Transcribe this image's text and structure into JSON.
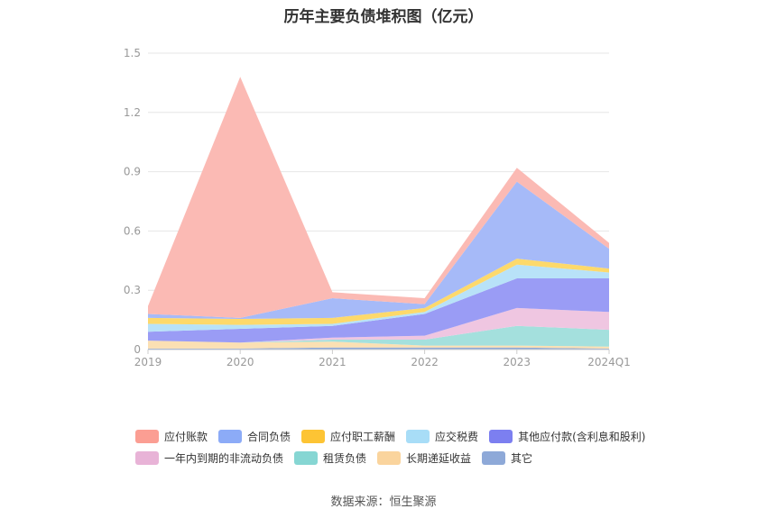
{
  "chart_data": {
    "type": "area",
    "stacked": true,
    "title": "历年主要负债堆积图（亿元）",
    "categories": [
      "2019",
      "2020",
      "2021",
      "2022",
      "2023",
      "2024Q1"
    ],
    "ylim": [
      0,
      1.5
    ],
    "yticks": [
      "0",
      "0.3",
      "0.6",
      "0.9",
      "1.2",
      "1.5"
    ],
    "grid": true,
    "legend_position": "bottom",
    "series": [
      {
        "name": "其它",
        "color": "#8ea9d8",
        "values": [
          0.005,
          0.005,
          0.01,
          0.01,
          0.01,
          0.005
        ]
      },
      {
        "name": "长期递延收益",
        "color": "#fbe0b3",
        "values": [
          0.04,
          0.03,
          0.03,
          0.01,
          0.01,
          0.01
        ]
      },
      {
        "name": "租赁负债",
        "color": "#a4e0dd",
        "values": [
          0.0,
          0.0,
          0.01,
          0.03,
          0.1,
          0.085
        ]
      },
      {
        "name": "一年内到期的非流动负债",
        "color": "#efc6e1",
        "values": [
          0.0,
          0.0,
          0.01,
          0.02,
          0.09,
          0.09
        ]
      },
      {
        "name": "其他应付款(含利息和股利)",
        "color": "#9a9cf5",
        "values": [
          0.045,
          0.07,
          0.06,
          0.11,
          0.15,
          0.17
        ]
      },
      {
        "name": "应交税费",
        "color": "#b8e2f8",
        "values": [
          0.04,
          0.02,
          0.01,
          0.01,
          0.07,
          0.03
        ]
      },
      {
        "name": "应付职工薪酬",
        "color": "#fdd96b",
        "values": [
          0.03,
          0.03,
          0.03,
          0.02,
          0.03,
          0.02
        ]
      },
      {
        "name": "合同负债",
        "color": "#a6baf8",
        "values": [
          0.02,
          0.005,
          0.1,
          0.02,
          0.39,
          0.1
        ]
      },
      {
        "name": "应付账款",
        "color": "#fbbab4",
        "values": [
          0.04,
          1.22,
          0.03,
          0.03,
          0.07,
          0.03
        ]
      }
    ],
    "source": "数据来源：恒生聚源"
  },
  "legend": {
    "rows": [
      [
        {
          "label": "应付账款",
          "color": "#fb9e93"
        },
        {
          "label": "合同负债",
          "color": "#8cabf7"
        },
        {
          "label": "应付职工薪酬",
          "color": "#fdc434"
        },
        {
          "label": "应交税费",
          "color": "#a8ddf7"
        },
        {
          "label": "其他应付款(含利息和股利)",
          "color": "#7c7ff0"
        }
      ],
      [
        {
          "label": "一年内到期的非流动负债",
          "color": "#e8b3d7"
        },
        {
          "label": "租赁负债",
          "color": "#86d6d3"
        },
        {
          "label": "长期递延收益",
          "color": "#fad49d"
        },
        {
          "label": "其它",
          "color": "#8ea9d8"
        }
      ]
    ]
  }
}
